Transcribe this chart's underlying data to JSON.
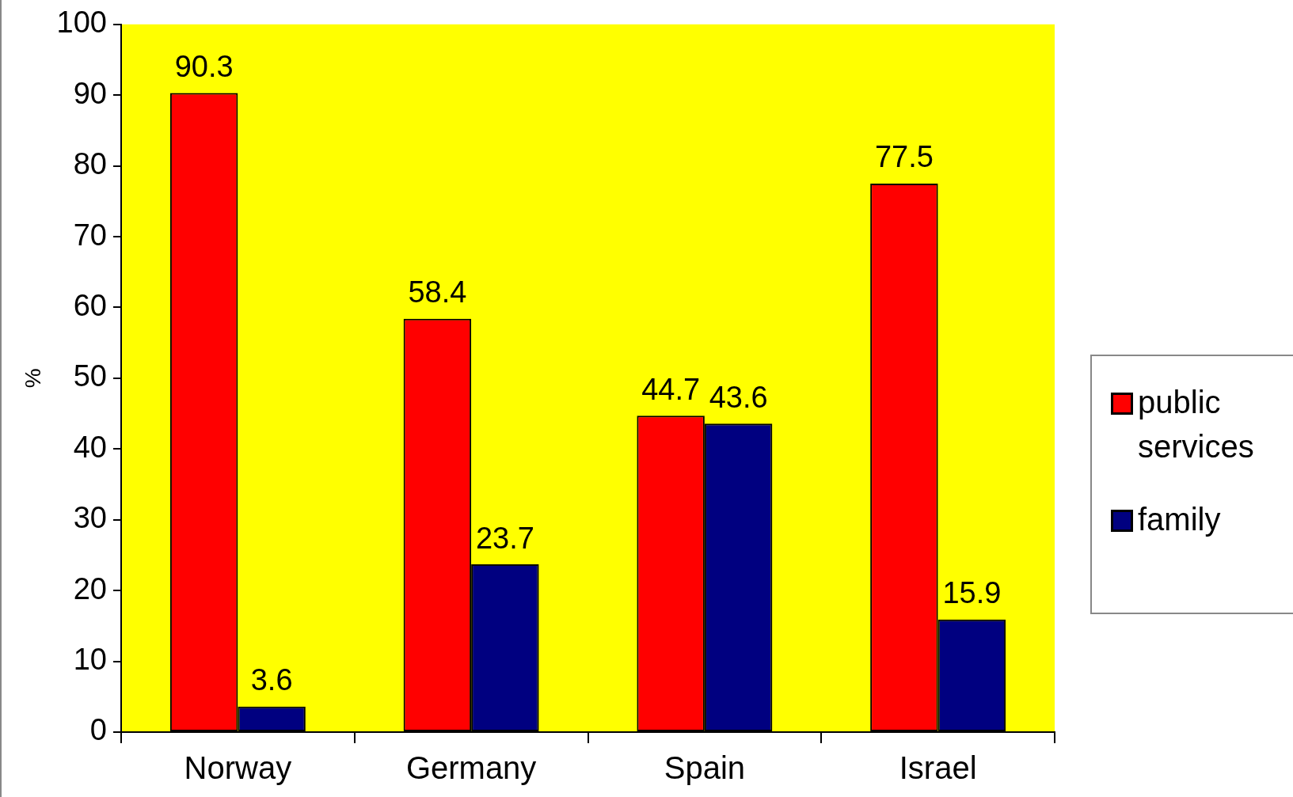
{
  "chart_data": {
    "type": "bar",
    "ylabel": "%",
    "categories": [
      "Norway",
      "Germany",
      "Spain",
      "Israel"
    ],
    "series": [
      {
        "name": "public services",
        "color": "#ff0000",
        "values": [
          90.3,
          58.4,
          44.7,
          77.5
        ]
      },
      {
        "name": "family",
        "color": "#000080",
        "values": [
          3.6,
          23.7,
          43.6,
          15.9
        ]
      }
    ],
    "ylim": [
      0,
      100
    ],
    "yticks": [
      0,
      10,
      20,
      30,
      40,
      50,
      60,
      70,
      80,
      90,
      100
    ],
    "grid": false,
    "legend": "right",
    "data_labels": true
  }
}
